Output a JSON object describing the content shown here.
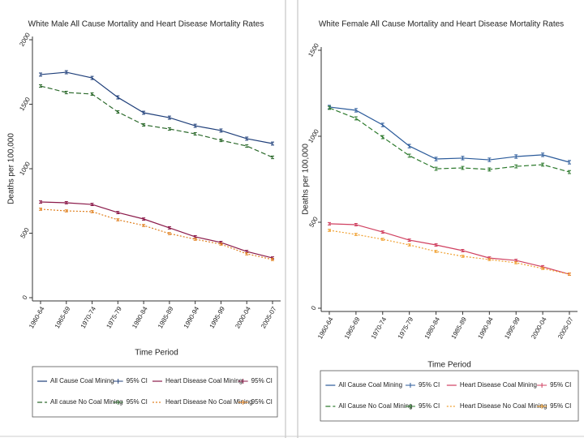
{
  "chart_data": [
    {
      "type": "line",
      "title": "White Male All Cause Mortality and Heart Disease Mortality Rates",
      "x_label": "Time Period",
      "y_label": "Deaths per 100,000",
      "categories": [
        "1960-64",
        "1965-69",
        "1970-74",
        "1975-79",
        "1980-84",
        "1985-89",
        "1990-94",
        "1995-99",
        "2000-04",
        "2005-07"
      ],
      "ylim": [
        0,
        2000
      ],
      "yticks": [
        0,
        500,
        1000,
        1500,
        2000
      ],
      "series": [
        {
          "name": "All Cause Coal Mining",
          "ci_name": "95% CI",
          "color": "#1f3f7a",
          "line_style": "solid",
          "values": [
            1730,
            1748,
            1704,
            1553,
            1434,
            1396,
            1333,
            1296,
            1233,
            1195
          ],
          "errors": [
            12,
            12,
            12,
            12,
            12,
            12,
            12,
            12,
            12,
            12
          ]
        },
        {
          "name": "All cause No Coal Mining",
          "ci_name": "95% CI",
          "color": "#2e6b2e",
          "line_style": "dashed",
          "values": [
            1641,
            1591,
            1579,
            1440,
            1340,
            1308,
            1270,
            1220,
            1176,
            1088
          ],
          "errors": [
            10,
            10,
            10,
            10,
            10,
            10,
            10,
            10,
            10,
            10
          ]
        },
        {
          "name": "Heart Disease Coal Mining",
          "ci_name": "95% CI",
          "color": "#8b1a4a",
          "line_style": "solid",
          "values": [
            742,
            736,
            723,
            660,
            610,
            541,
            472,
            428,
            358,
            308
          ],
          "errors": [
            9,
            9,
            9,
            9,
            9,
            9,
            9,
            9,
            9,
            9
          ]
        },
        {
          "name": "Heart Disease No Coal Mining",
          "ci_name": "95% CI",
          "color": "#e08020",
          "line_style": "dotted",
          "values": [
            686,
            673,
            667,
            604,
            560,
            497,
            453,
            415,
            340,
            296
          ],
          "errors": [
            8,
            8,
            8,
            8,
            8,
            8,
            8,
            8,
            8,
            8
          ]
        }
      ]
    },
    {
      "type": "line",
      "title": "White Female All Cause Mortality and Heart Disease Mortality Rates",
      "x_label": "Time Period",
      "y_label": "Deaths per 100,000",
      "categories": [
        "1960-64",
        "1965-69",
        "1970-74",
        "1975-79",
        "1980-84",
        "1985-89",
        "1990-94",
        "1995-99",
        "2000-04",
        "2005-07"
      ],
      "ylim": [
        0,
        1500
      ],
      "yticks": [
        0,
        500,
        1000,
        1500
      ],
      "series": [
        {
          "name": "All Cause Coal Mining",
          "ci_name": "95% CI",
          "color": "#2a5a9a",
          "line_style": "solid",
          "values": [
            1170,
            1151,
            1066,
            943,
            868,
            873,
            863,
            882,
            892,
            849
          ],
          "errors": [
            10,
            10,
            10,
            10,
            10,
            10,
            10,
            10,
            10,
            10
          ]
        },
        {
          "name": "All Cause No Coal Mining",
          "ci_name": "95% CI",
          "color": "#2d7a2d",
          "line_style": "dashed",
          "values": [
            1165,
            1104,
            995,
            887,
            811,
            816,
            807,
            825,
            835,
            792
          ],
          "errors": [
            9,
            9,
            9,
            9,
            9,
            9,
            9,
            9,
            9,
            9
          ]
        },
        {
          "name": "Heart Disease Coal Mining",
          "ci_name": "95% CI",
          "color": "#d04060",
          "line_style": "solid",
          "values": [
            491,
            486,
            443,
            396,
            368,
            335,
            292,
            278,
            241,
            198
          ],
          "errors": [
            7,
            7,
            7,
            7,
            7,
            7,
            7,
            7,
            7,
            7
          ]
        },
        {
          "name": "Heart Disease No Coal Mining",
          "ci_name": "95% CI",
          "color": "#f0a030",
          "line_style": "dotted",
          "values": [
            453,
            429,
            401,
            368,
            330,
            302,
            283,
            264,
            231,
            198
          ],
          "errors": [
            6,
            6,
            6,
            6,
            6,
            6,
            6,
            6,
            6,
            6
          ]
        }
      ]
    }
  ]
}
